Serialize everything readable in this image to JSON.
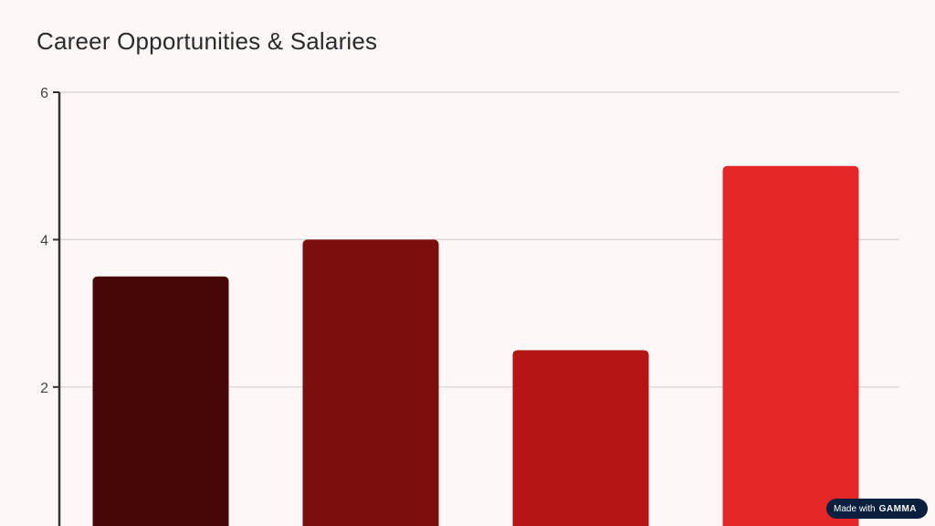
{
  "slide": {
    "title": "Career Opportunities & Salaries"
  },
  "badge": {
    "prefix": "Made with",
    "brand": "GAMMA"
  },
  "chart_data": {
    "type": "bar",
    "title": "Career Opportunities & Salaries",
    "xlabel": "",
    "ylabel": "",
    "ylim": [
      0,
      6
    ],
    "yticks": [
      2,
      4,
      6
    ],
    "grid": true,
    "categories": [
      "",
      "",
      "",
      ""
    ],
    "values": [
      3.5,
      4,
      2.5,
      5
    ],
    "bar_colors": [
      "#460707",
      "#7d0e0e",
      "#b51515",
      "#e52626"
    ]
  },
  "colors": {
    "background": "#fdf7f7",
    "grid": "#d6d2d2",
    "axis": "#333333"
  }
}
